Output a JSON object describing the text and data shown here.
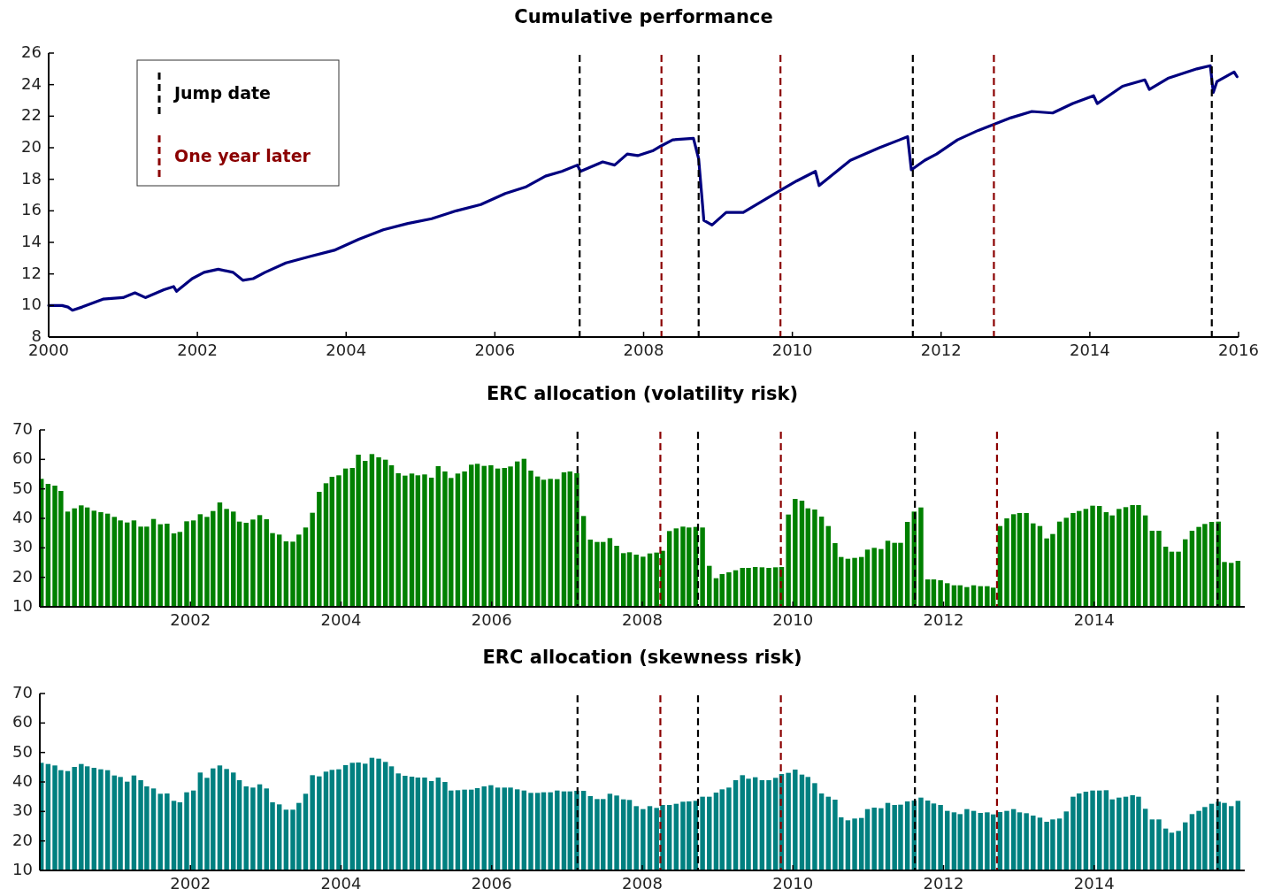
{
  "chart_data": [
    {
      "type": "line",
      "title": "Cumulative performance",
      "color": "#00007f",
      "legend": "top left",
      "x": [
        2000.0,
        2000.18,
        2000.26,
        2000.32,
        2000.45,
        2000.73,
        2001.0,
        2001.16,
        2001.3,
        2001.55,
        2001.68,
        2001.72,
        2001.93,
        2002.09,
        2002.28,
        2002.48,
        2002.61,
        2002.75,
        2002.91,
        2003.19,
        2003.51,
        2003.84,
        2004.17,
        2004.5,
        2004.83,
        2005.15,
        2005.48,
        2005.81,
        2006.14,
        2006.41,
        2006.68,
        2006.9,
        2007.11,
        2007.15,
        2007.45,
        2007.61,
        2007.78,
        2007.92,
        2008.12,
        2008.23,
        2008.39,
        2008.67,
        2008.74,
        2008.81,
        2008.92,
        2009.11,
        2009.34,
        2009.84,
        2010.06,
        2010.31,
        2010.36,
        2010.78,
        2011.17,
        2011.55,
        2011.6,
        2011.78,
        2011.94,
        2012.22,
        2012.5,
        2012.94,
        2013.22,
        2013.5,
        2013.77,
        2014.05,
        2014.1,
        2014.44,
        2014.74,
        2014.8,
        2015.05,
        2015.44,
        2015.62,
        2015.66,
        2015.71,
        2015.94,
        2015.98
      ],
      "values": [
        10.0,
        10.0,
        9.9,
        9.7,
        9.9,
        10.4,
        10.5,
        10.8,
        10.5,
        11.0,
        11.2,
        10.9,
        11.7,
        12.1,
        12.3,
        12.1,
        11.6,
        11.7,
        12.1,
        12.7,
        13.1,
        13.5,
        14.2,
        14.8,
        15.2,
        15.5,
        16.0,
        16.4,
        17.1,
        17.5,
        18.2,
        18.5,
        18.9,
        18.5,
        19.1,
        18.9,
        19.6,
        19.5,
        19.8,
        20.1,
        20.5,
        20.6,
        19.3,
        15.4,
        15.1,
        15.9,
        15.9,
        17.3,
        17.9,
        18.5,
        17.6,
        19.2,
        20.0,
        20.7,
        18.6,
        19.2,
        19.6,
        20.5,
        21.1,
        21.9,
        22.3,
        22.2,
        22.8,
        23.3,
        22.8,
        23.9,
        24.3,
        23.7,
        24.4,
        25.0,
        25.2,
        23.5,
        24.2,
        24.8,
        24.5
      ],
      "xlim": [
        2000,
        2016
      ],
      "xticks": [
        2000,
        2002,
        2004,
        2006,
        2008,
        2010,
        2012,
        2014,
        2016
      ],
      "ylim": [
        8,
        26
      ],
      "yticks": [
        8,
        10,
        12,
        14,
        16,
        18,
        20,
        22,
        24,
        26
      ],
      "ref_lines": [
        {
          "axis": "x",
          "value": 2007.14,
          "color": "#000000",
          "line_style": "dashed",
          "label": "Jump date"
        },
        {
          "axis": "x",
          "value": 2008.24,
          "color": "#8b0000",
          "line_style": "dashed",
          "label": "One year later"
        },
        {
          "axis": "x",
          "value": 2008.74,
          "color": "#000000",
          "line_style": "dashed"
        },
        {
          "axis": "x",
          "value": 2009.84,
          "color": "#8b0000",
          "line_style": "dashed"
        },
        {
          "axis": "x",
          "value": 2011.62,
          "color": "#000000",
          "line_style": "dashed"
        },
        {
          "axis": "x",
          "value": 2012.71,
          "color": "#8b0000",
          "line_style": "dashed"
        },
        {
          "axis": "x",
          "value": 2015.64,
          "color": "#000000",
          "line_style": "dashed"
        }
      ]
    },
    {
      "type": "bar",
      "title": "ERC allocation (volatility risk)",
      "color": "#008000",
      "x": [
        2000.02,
        2000.11,
        2000.2,
        2000.28,
        2000.37,
        2000.46,
        2000.55,
        2000.63,
        2000.72,
        2000.81,
        2000.9,
        2000.99,
        2001.07,
        2001.16,
        2001.25,
        2001.34,
        2001.42,
        2001.51,
        2001.6,
        2001.69,
        2001.78,
        2001.86,
        2001.95,
        2002.04,
        2002.13,
        2002.22,
        2002.3,
        2002.39,
        2002.48,
        2002.57,
        2002.65,
        2002.74,
        2002.83,
        2002.92,
        2003.01,
        2003.09,
        2003.18,
        2003.27,
        2003.36,
        2003.44,
        2003.53,
        2003.62,
        2003.71,
        2003.8,
        2003.88,
        2003.97,
        2004.06,
        2004.15,
        2004.23,
        2004.32,
        2004.41,
        2004.5,
        2004.59,
        2004.67,
        2004.76,
        2004.85,
        2004.94,
        2005.02,
        2005.11,
        2005.2,
        2005.29,
        2005.38,
        2005.46,
        2005.55,
        2005.64,
        2005.73,
        2005.81,
        2005.9,
        2005.99,
        2006.08,
        2006.17,
        2006.25,
        2006.34,
        2006.43,
        2006.52,
        2006.61,
        2006.69,
        2006.78,
        2006.87,
        2006.96,
        2007.04,
        2007.13,
        2007.22,
        2007.31,
        2007.4,
        2007.48,
        2007.57,
        2007.66,
        2007.75,
        2007.83,
        2007.92,
        2008.01,
        2008.1,
        2008.19,
        2008.27,
        2008.36,
        2008.45,
        2008.54,
        2008.62,
        2008.71,
        2008.8,
        2008.89,
        2008.98,
        2009.06,
        2009.15,
        2009.24,
        2009.33,
        2009.41,
        2009.5,
        2009.59,
        2009.68,
        2009.77,
        2009.85,
        2009.94,
        2010.03,
        2010.12,
        2010.2,
        2010.29,
        2010.38,
        2010.47,
        2010.56,
        2010.64,
        2010.73,
        2010.82,
        2010.91,
        2010.99,
        2011.08,
        2011.17,
        2011.26,
        2011.35,
        2011.43,
        2011.52,
        2011.61,
        2011.7,
        2011.79,
        2011.87,
        2011.96,
        2012.05,
        2012.14,
        2012.22,
        2012.31,
        2012.4,
        2012.49,
        2012.58,
        2012.66,
        2012.75,
        2012.84,
        2012.93,
        2013.01,
        2013.1,
        2013.19,
        2013.28,
        2013.37,
        2013.45,
        2013.54,
        2013.63,
        2013.72,
        2013.8,
        2013.89,
        2013.98,
        2014.07,
        2014.16,
        2014.24,
        2014.33,
        2014.42,
        2014.51,
        2014.59,
        2014.68,
        2014.77,
        2014.86,
        2014.95,
        2015.03,
        2015.12,
        2015.21,
        2015.3,
        2015.39,
        2015.47,
        2015.56,
        2015.65,
        2015.73,
        2015.82,
        2015.91
      ],
      "values": [
        53.4,
        51.7,
        51.1,
        49.3,
        42.3,
        43.4,
        44.4,
        43.7,
        42.6,
        42.1,
        41.6,
        40.5,
        39.3,
        38.6,
        39.3,
        37.2,
        37.2,
        39.8,
        38.0,
        38.2,
        34.9,
        35.4,
        39.0,
        39.3,
        41.4,
        40.5,
        42.5,
        45.4,
        43.2,
        42.3,
        38.9,
        38.5,
        39.6,
        41.1,
        39.7,
        35.0,
        34.5,
        32.2,
        32.1,
        34.5,
        36.9,
        41.9,
        49.0,
        51.9,
        54.1,
        54.6,
        56.9,
        57.1,
        61.6,
        59.5,
        61.8,
        60.7,
        59.9,
        58.0,
        55.3,
        54.5,
        55.2,
        54.6,
        54.9,
        53.8,
        57.7,
        55.9,
        53.7,
        55.2,
        55.9,
        58.2,
        58.5,
        57.8,
        58.0,
        56.9,
        57.1,
        57.6,
        59.3,
        60.2,
        56.2,
        54.2,
        53.1,
        53.4,
        53.3,
        55.6,
        55.9,
        55.3,
        40.8,
        32.8,
        32.0,
        32.0,
        33.3,
        30.7,
        28.2,
        28.5,
        27.7,
        27.0,
        28.1,
        28.4,
        29.0,
        35.7,
        36.6,
        37.2,
        36.9,
        37.1,
        36.9,
        23.9,
        19.7,
        21.1,
        21.7,
        22.4,
        23.2,
        23.2,
        23.5,
        23.4,
        23.2,
        23.4,
        23.5,
        41.3,
        46.6,
        46.0,
        43.4,
        43.0,
        40.6,
        37.4,
        31.6,
        26.9,
        26.3,
        26.6,
        26.9,
        29.4,
        30.0,
        29.6,
        32.4,
        31.7,
        31.7,
        38.8,
        42.3,
        43.7,
        19.3,
        19.3,
        19.0,
        18.0,
        17.3,
        17.3,
        16.7,
        17.3,
        17.0,
        17.0,
        16.5,
        37.4,
        40.0,
        41.4,
        41.8,
        41.8,
        38.3,
        37.4,
        33.2,
        34.7,
        38.9,
        40.2,
        41.8,
        42.5,
        43.2,
        44.3,
        44.2,
        42.1,
        41.0,
        43.2,
        43.8,
        44.5,
        44.5,
        41.0,
        35.8,
        35.8,
        30.4,
        28.7,
        28.7,
        32.9,
        35.8,
        37.1,
        38.1,
        38.8,
        38.9,
        25.2,
        24.9,
        25.6
      ],
      "xlim": [
        2000,
        2016
      ],
      "xticks": [
        2002,
        2004,
        2006,
        2008,
        2010,
        2012,
        2014
      ],
      "ylim": [
        10,
        70
      ],
      "yticks": [
        10,
        20,
        30,
        40,
        50,
        60,
        70
      ],
      "ref_lines": [
        {
          "axis": "x",
          "value": 2007.14,
          "color": "#000000",
          "line_style": "dashed"
        },
        {
          "axis": "x",
          "value": 2008.24,
          "color": "#8b0000",
          "line_style": "dashed"
        },
        {
          "axis": "x",
          "value": 2008.74,
          "color": "#000000",
          "line_style": "dashed"
        },
        {
          "axis": "x",
          "value": 2009.84,
          "color": "#8b0000",
          "line_style": "dashed"
        },
        {
          "axis": "x",
          "value": 2011.62,
          "color": "#000000",
          "line_style": "dashed"
        },
        {
          "axis": "x",
          "value": 2012.71,
          "color": "#8b0000",
          "line_style": "dashed"
        },
        {
          "axis": "x",
          "value": 2015.64,
          "color": "#000000",
          "line_style": "dashed"
        }
      ]
    },
    {
      "type": "bar",
      "title": "ERC allocation (skewness risk)",
      "color": "#008080",
      "x": [
        2000.02,
        2000.11,
        2000.2,
        2000.28,
        2000.37,
        2000.46,
        2000.55,
        2000.63,
        2000.72,
        2000.81,
        2000.9,
        2000.99,
        2001.07,
        2001.16,
        2001.25,
        2001.34,
        2001.42,
        2001.51,
        2001.6,
        2001.69,
        2001.78,
        2001.86,
        2001.95,
        2002.04,
        2002.13,
        2002.22,
        2002.3,
        2002.39,
        2002.48,
        2002.57,
        2002.65,
        2002.74,
        2002.83,
        2002.92,
        2003.01,
        2003.09,
        2003.18,
        2003.27,
        2003.36,
        2003.44,
        2003.53,
        2003.62,
        2003.71,
        2003.8,
        2003.88,
        2003.97,
        2004.06,
        2004.15,
        2004.23,
        2004.32,
        2004.41,
        2004.5,
        2004.59,
        2004.67,
        2004.76,
        2004.85,
        2004.94,
        2005.02,
        2005.11,
        2005.2,
        2005.29,
        2005.38,
        2005.46,
        2005.55,
        2005.64,
        2005.73,
        2005.81,
        2005.9,
        2005.99,
        2006.08,
        2006.17,
        2006.25,
        2006.34,
        2006.43,
        2006.52,
        2006.61,
        2006.69,
        2006.78,
        2006.87,
        2006.96,
        2007.04,
        2007.13,
        2007.22,
        2007.31,
        2007.4,
        2007.48,
        2007.57,
        2007.66,
        2007.75,
        2007.83,
        2007.92,
        2008.01,
        2008.1,
        2008.19,
        2008.27,
        2008.36,
        2008.45,
        2008.54,
        2008.62,
        2008.71,
        2008.8,
        2008.89,
        2008.98,
        2009.06,
        2009.15,
        2009.24,
        2009.33,
        2009.41,
        2009.5,
        2009.59,
        2009.68,
        2009.77,
        2009.85,
        2009.94,
        2010.03,
        2010.12,
        2010.2,
        2010.29,
        2010.38,
        2010.47,
        2010.56,
        2010.64,
        2010.73,
        2010.82,
        2010.91,
        2010.99,
        2011.08,
        2011.17,
        2011.26,
        2011.35,
        2011.43,
        2011.52,
        2011.61,
        2011.7,
        2011.79,
        2011.87,
        2011.96,
        2012.05,
        2012.14,
        2012.22,
        2012.31,
        2012.4,
        2012.49,
        2012.58,
        2012.66,
        2012.75,
        2012.84,
        2012.93,
        2013.01,
        2013.1,
        2013.19,
        2013.28,
        2013.37,
        2013.45,
        2013.54,
        2013.63,
        2013.72,
        2013.8,
        2013.89,
        2013.98,
        2014.07,
        2014.16,
        2014.24,
        2014.33,
        2014.42,
        2014.51,
        2014.59,
        2014.68,
        2014.77,
        2014.86,
        2014.95,
        2015.03,
        2015.12,
        2015.21,
        2015.3,
        2015.39,
        2015.47,
        2015.56,
        2015.65,
        2015.73,
        2015.82,
        2015.91
      ],
      "values": [
        46.5,
        46.1,
        45.6,
        44.0,
        43.7,
        45.1,
        46.1,
        45.3,
        44.8,
        44.3,
        44.0,
        42.2,
        41.7,
        40.1,
        42.2,
        40.6,
        38.5,
        37.8,
        36.0,
        36.1,
        33.6,
        33.1,
        36.5,
        37.1,
        43.2,
        41.4,
        44.6,
        45.6,
        44.4,
        43.2,
        40.6,
        38.5,
        38.1,
        39.2,
        37.8,
        33.1,
        32.4,
        30.6,
        30.6,
        32.9,
        36.0,
        42.3,
        41.9,
        43.5,
        44.1,
        44.3,
        45.7,
        46.5,
        46.6,
        46.2,
        48.2,
        47.9,
        46.8,
        45.3,
        42.9,
        42.1,
        41.8,
        41.5,
        41.5,
        40.3,
        41.5,
        40.0,
        37.1,
        37.2,
        37.4,
        37.4,
        37.9,
        38.5,
        38.9,
        38.1,
        38.1,
        38.1,
        37.5,
        37.1,
        36.3,
        36.3,
        36.5,
        36.5,
        37.1,
        36.8,
        36.8,
        37.0,
        37.0,
        35.2,
        34.2,
        34.2,
        36.0,
        35.4,
        34.1,
        33.9,
        31.8,
        30.8,
        31.8,
        31.2,
        32.2,
        32.2,
        32.6,
        33.3,
        33.4,
        33.6,
        35.0,
        35.0,
        36.4,
        37.5,
        38.1,
        40.6,
        42.3,
        41.1,
        41.6,
        40.6,
        40.6,
        41.4,
        42.7,
        43.1,
        44.2,
        42.5,
        41.7,
        39.6,
        36.1,
        35.0,
        34.0,
        28.0,
        27.0,
        27.6,
        27.8,
        30.8,
        31.3,
        31.1,
        32.9,
        32.2,
        32.3,
        33.4,
        33.7,
        34.7,
        33.7,
        32.7,
        32.2,
        30.2,
        29.7,
        29.1,
        30.8,
        30.2,
        29.5,
        29.7,
        29.0,
        29.8,
        30.2,
        30.8,
        29.7,
        29.4,
        28.6,
        27.9,
        26.5,
        27.3,
        27.6,
        30.0,
        35.0,
        36.1,
        36.7,
        37.1,
        37.1,
        37.2,
        34.1,
        34.7,
        35.0,
        35.5,
        35.0,
        30.9,
        27.3,
        27.3,
        24.2,
        22.8,
        23.4,
        26.3,
        29.1,
        30.2,
        31.5,
        32.6,
        33.3,
        32.9,
        31.8,
        33.6
      ],
      "xlim": [
        2000,
        2016
      ],
      "xticks": [
        2002,
        2004,
        2006,
        2008,
        2010,
        2012,
        2014
      ],
      "ylim": [
        10,
        70
      ],
      "yticks": [
        10,
        20,
        30,
        40,
        50,
        60,
        70
      ],
      "ref_lines": [
        {
          "axis": "x",
          "value": 2007.14,
          "color": "#000000",
          "line_style": "dashed"
        },
        {
          "axis": "x",
          "value": 2008.24,
          "color": "#8b0000",
          "line_style": "dashed"
        },
        {
          "axis": "x",
          "value": 2008.74,
          "color": "#000000",
          "line_style": "dashed"
        },
        {
          "axis": "x",
          "value": 2009.84,
          "color": "#8b0000",
          "line_style": "dashed"
        },
        {
          "axis": "x",
          "value": 2011.62,
          "color": "#000000",
          "line_style": "dashed"
        },
        {
          "axis": "x",
          "value": 2012.71,
          "color": "#8b0000",
          "line_style": "dashed"
        },
        {
          "axis": "x",
          "value": 2015.64,
          "color": "#000000",
          "line_style": "dashed"
        }
      ]
    }
  ]
}
